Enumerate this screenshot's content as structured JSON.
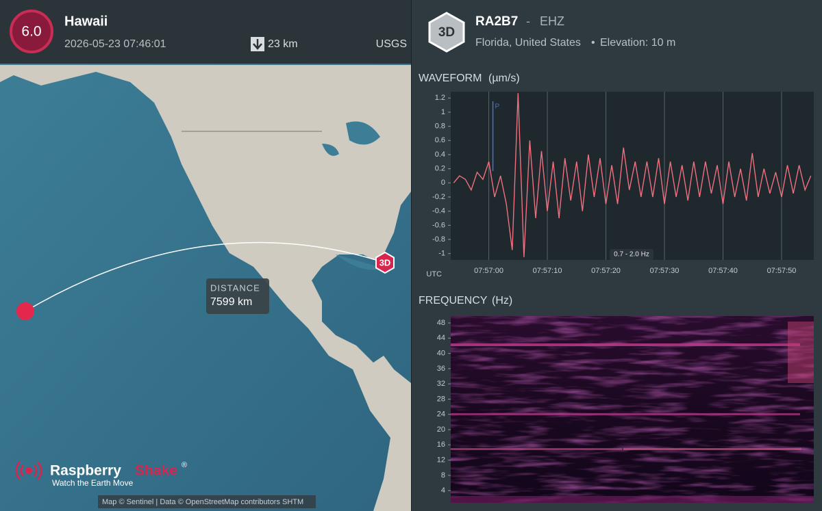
{
  "header": {
    "magnitude": "6.0",
    "region": "Hawaii",
    "datetime": "2026-05-23 07:46:01",
    "depth": "23 km",
    "source": "USGS"
  },
  "station": {
    "badge": "3D",
    "code": "RA2B7",
    "separator": "-",
    "channel": "EHZ",
    "location": "Florida, United States",
    "bullet": "•",
    "elevation": "Elevation: 10 m"
  },
  "map": {
    "distance_label": "DISTANCE",
    "distance": "7599 km",
    "marker": "3D",
    "brand_1": "Raspberry",
    "brand_2": "Shake",
    "brand_reg": "®",
    "tagline": "Watch the Earth Move",
    "attribution": "Map © Sentinel | Data © OpenStreetMap contributors SHTM"
  },
  "chart_data": [
    {
      "type": "line",
      "title": "WAVEFORM",
      "unit": "(µm/s)",
      "x_label": "UTC",
      "color": "#f0707f",
      "grid": "x",
      "x": [
        -6,
        -5,
        -4,
        -3,
        -2,
        -1,
        0,
        1,
        2,
        3,
        4,
        5,
        6,
        7,
        8,
        9,
        10,
        11,
        12,
        13,
        14,
        15,
        16,
        17,
        18,
        19,
        20,
        21,
        22,
        23,
        24,
        25,
        26,
        27,
        28,
        29,
        30,
        31,
        32,
        33,
        34,
        35,
        36,
        37,
        38,
        39,
        40,
        41,
        42,
        43,
        44,
        45,
        46,
        47,
        48,
        49,
        50,
        51,
        52,
        53,
        54,
        55
      ],
      "values": [
        0,
        0.1,
        0.05,
        -0.1,
        0.15,
        0.05,
        0.3,
        -0.2,
        0.1,
        -0.3,
        -0.95,
        1.27,
        -1.05,
        0.6,
        -0.5,
        0.45,
        -0.4,
        0.3,
        -0.5,
        0.35,
        -0.25,
        0.3,
        -0.4,
        0.4,
        -0.2,
        0.35,
        -0.3,
        0.25,
        -0.3,
        0.5,
        -0.1,
        0.3,
        -0.2,
        0.3,
        -0.2,
        0.35,
        -0.3,
        0.3,
        -0.2,
        0.25,
        -0.25,
        0.3,
        -0.2,
        0.3,
        -0.15,
        0.25,
        -0.3,
        0.3,
        -0.2,
        0.2,
        -0.25,
        0.42,
        -0.2,
        0.2,
        -0.15,
        0.15,
        -0.2,
        0.25,
        -0.15,
        0.25,
        -0.1,
        0.1
      ],
      "xlim": [
        -6.5,
        55.5
      ],
      "xticks": [
        {
          "value": 0,
          "label": "07:57:00"
        },
        {
          "value": 10,
          "label": "07:57:10"
        },
        {
          "value": 20,
          "label": "07:57:20"
        },
        {
          "value": 30,
          "label": "07:57:30"
        },
        {
          "value": 40,
          "label": "07:57:40"
        },
        {
          "value": 50,
          "label": "07:57:50"
        }
      ],
      "ylim": [
        -1.09,
        1.29
      ],
      "yticks": [
        1.2,
        1,
        0.8,
        0.6,
        0.4,
        0.2,
        0,
        -0.2,
        -0.4,
        -0.6,
        -0.8,
        -1
      ],
      "pick": {
        "label": "P",
        "x": 0.7,
        "color": "#4a6fd8"
      },
      "filter_label": "0.7 - 2.0 Hz"
    },
    {
      "type": "spectrogram",
      "title": "FREQUENCY",
      "unit": "(Hz)",
      "ylim": [
        0.8,
        49.8
      ],
      "yticks": [
        4,
        8,
        12,
        16,
        20,
        24,
        28,
        32,
        36,
        40,
        44,
        48
      ]
    }
  ]
}
